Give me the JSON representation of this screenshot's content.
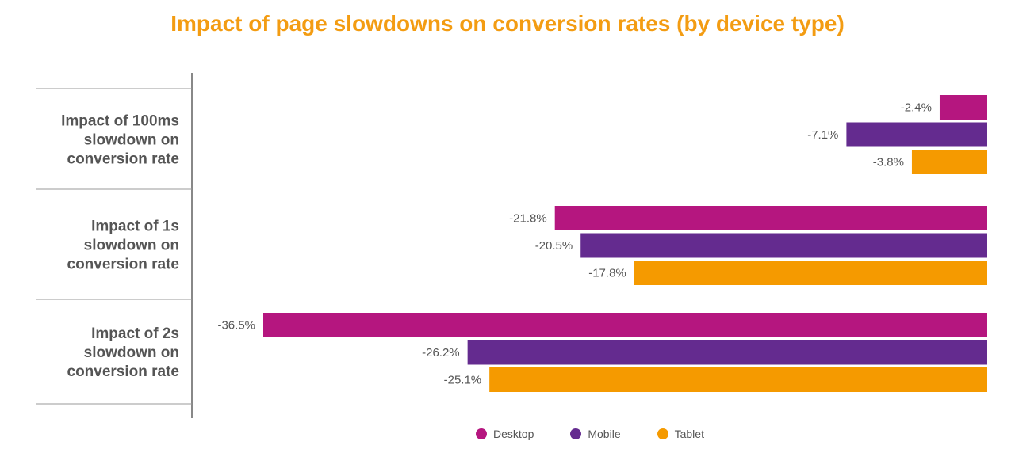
{
  "colors": {
    "title": "#F39C12",
    "desktop": "#B5167F",
    "mobile": "#642B8F",
    "tablet": "#F59A00",
    "category_text": "#555555",
    "value_text": "#555555",
    "rule": "#888888"
  },
  "chart_data": {
    "type": "bar",
    "orientation": "horizontal",
    "title": "Impact of page slowdowns on conversion rates (by device type)",
    "categories": [
      "Impact of 100ms slowdown on conversion rate",
      "Impact of 1s slowdown on conversion rate",
      "Impact of 2s slowdown on conversion rate"
    ],
    "category_lines": [
      [
        "Impact of 100ms",
        "slowdown on",
        "conversion rate"
      ],
      [
        "Impact of 1s",
        "slowdown on",
        "conversion rate"
      ],
      [
        "Impact of 2s",
        "slowdown on",
        "conversion rate"
      ]
    ],
    "series": [
      {
        "name": "Desktop",
        "color_key": "desktop",
        "values": [
          -2.4,
          -21.8,
          -36.5
        ],
        "labels": [
          "-2.4%",
          "-21.8%",
          "-36.5%"
        ]
      },
      {
        "name": "Mobile",
        "color_key": "mobile",
        "values": [
          -7.1,
          -20.5,
          -26.2
        ],
        "labels": [
          "-7.1%",
          "-20.5%",
          "-26.2%"
        ]
      },
      {
        "name": "Tablet",
        "color_key": "tablet",
        "values": [
          -3.8,
          -17.8,
          -25.1
        ],
        "labels": [
          "-3.8%",
          "-17.8%",
          "-25.1%"
        ]
      }
    ],
    "xlim": [
      -36.5,
      0
    ],
    "grid": false,
    "legend_position": "bottom-center"
  }
}
